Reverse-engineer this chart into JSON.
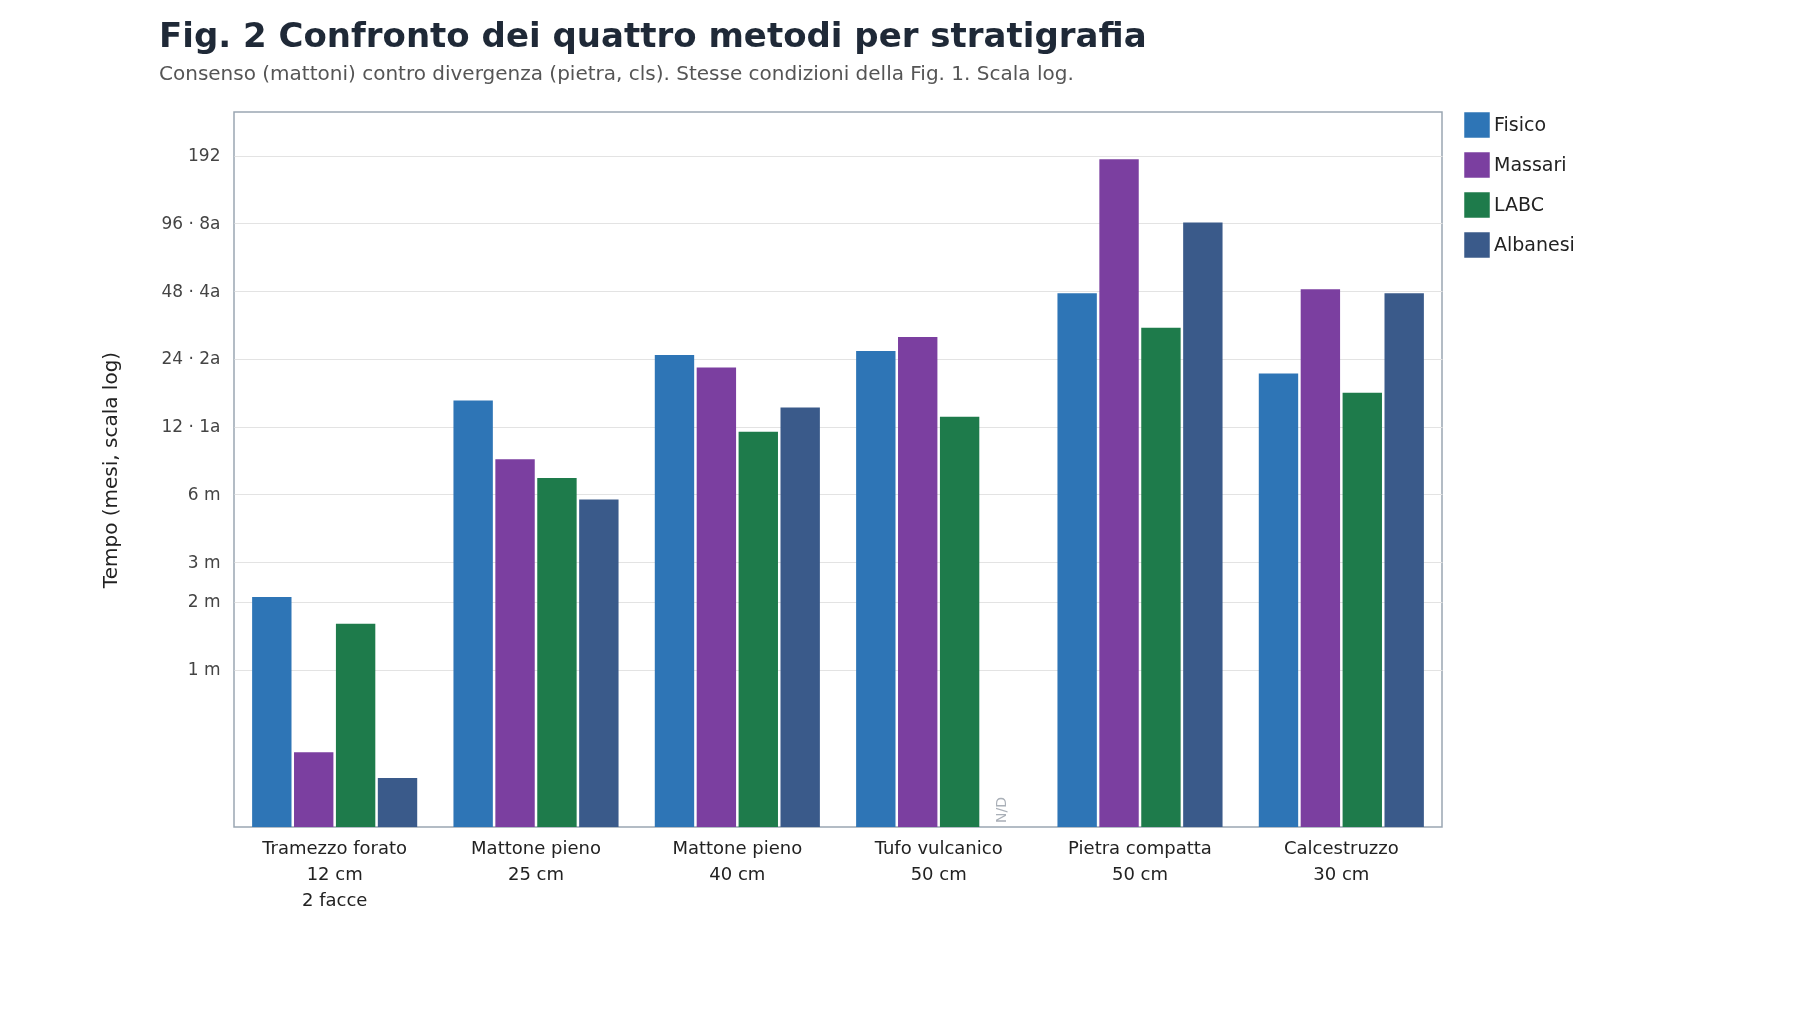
{
  "chart_data": {
    "type": "bar",
    "title": "Fig. 2 Confronto dei quattro metodi per stratigrafia",
    "subtitle": "Consenso (mattoni) contro divergenza (pietra, cls). Stesse condizioni della Fig. 1. Scala log.",
    "ylabel": "Tempo (mesi, scala log)",
    "categories": [
      "Tramezzo forato\n12 cm\n2 facce",
      "Mattone pieno\n25 cm",
      "Mattone pieno\n40 cm",
      "Tufo vulcanico\n50 cm",
      "Pietra compatta\n50 cm",
      "Calcestruzzo\n30 cm"
    ],
    "series": [
      {
        "name": "Fisico",
        "color": "#2e75b6",
        "values": [
          2.1,
          15.7,
          25,
          26,
          47,
          20.7
        ]
      },
      {
        "name": "Massari",
        "color": "#7b3fa0",
        "values": [
          0.43,
          8.6,
          22,
          30,
          185,
          49
        ]
      },
      {
        "name": "LABC",
        "color": "#1e7b4b",
        "values": [
          1.6,
          7.1,
          11.4,
          13.3,
          33,
          17
        ]
      },
      {
        "name": "Albanesi",
        "color": "#3a5a8a",
        "values": [
          0.33,
          5.7,
          14.6,
          null,
          97,
          47
        ]
      }
    ],
    "log": true,
    "ylim": [
      0.2,
      300
    ],
    "yticks": [
      {
        "value": 1,
        "label": "1 m"
      },
      {
        "value": 2,
        "label": "2 m"
      },
      {
        "value": 3,
        "label": "3 m"
      },
      {
        "value": 6,
        "label": "6 m"
      },
      {
        "value": 12,
        "label": "12 · 1a"
      },
      {
        "value": 24,
        "label": "24 · 2a"
      },
      {
        "value": 48,
        "label": "48 · 4a"
      },
      {
        "value": 96,
        "label": "96 · 8a"
      },
      192
    ],
    "grid": "y",
    "legend": "top right",
    "annotations": [
      "N/D"
    ]
  }
}
